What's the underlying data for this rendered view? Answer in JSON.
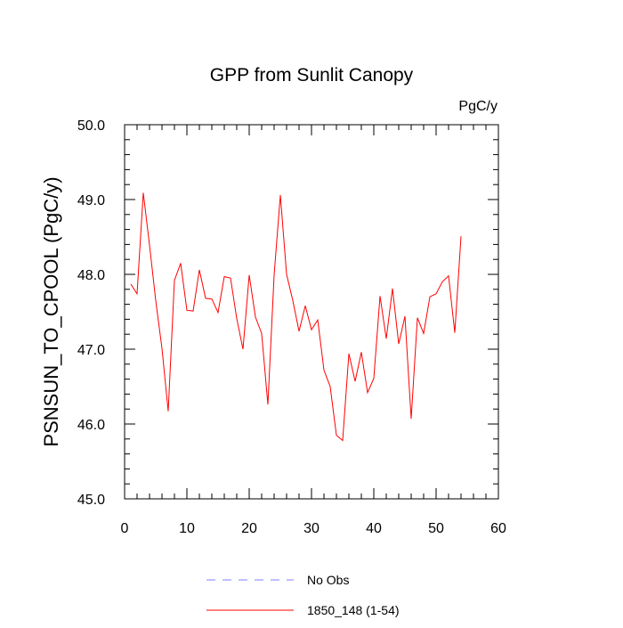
{
  "chart_data": {
    "type": "line",
    "title": "GPP from Sunlit Canopy",
    "units": "PgC/y",
    "ylabel": "PSNSUN_TO_CPOOL  (PgC/y)",
    "xlabel": "",
    "xlim": [
      0,
      60
    ],
    "ylim": [
      45.0,
      50.0
    ],
    "x_ticks": [
      0,
      10,
      20,
      30,
      40,
      50,
      60
    ],
    "y_ticks": [
      45.0,
      46.0,
      47.0,
      48.0,
      49.0,
      50.0
    ],
    "x_tick_labels": [
      "0",
      "10",
      "20",
      "30",
      "40",
      "50",
      "60"
    ],
    "y_tick_labels": [
      "45.0",
      "46.0",
      "47.0",
      "48.0",
      "49.0",
      "50.0"
    ],
    "grid": false,
    "legend_position": "bottom",
    "legend": [
      {
        "label": "No Obs",
        "color": "#8080ff",
        "style": "dashed"
      },
      {
        "label": "1850_148 (1-54)",
        "color": "#ff0000",
        "style": "solid"
      }
    ],
    "series": [
      {
        "name": "1850_148 (1-54)",
        "color": "#ff0000",
        "x": [
          1,
          2,
          3,
          4,
          5,
          6,
          7,
          8,
          9,
          10,
          11,
          12,
          13,
          14,
          15,
          16,
          17,
          18,
          19,
          20,
          21,
          22,
          23,
          24,
          25,
          26,
          27,
          28,
          29,
          30,
          31,
          32,
          33,
          34,
          35,
          36,
          37,
          38,
          39,
          40,
          41,
          42,
          43,
          44,
          45,
          46,
          47,
          48,
          49,
          50,
          51,
          52,
          53,
          54
        ],
        "values": [
          47.87,
          47.74,
          49.09,
          48.39,
          47.65,
          47.01,
          46.17,
          47.92,
          48.15,
          47.52,
          47.51,
          48.06,
          47.68,
          47.67,
          47.49,
          47.97,
          47.95,
          47.41,
          47.0,
          47.99,
          47.43,
          47.21,
          46.26,
          47.99,
          49.06,
          48.0,
          47.65,
          47.24,
          47.58,
          47.26,
          47.39,
          46.72,
          46.5,
          45.85,
          45.78,
          46.94,
          46.57,
          46.96,
          46.42,
          46.61,
          47.71,
          47.14,
          47.81,
          47.07,
          47.44,
          46.07,
          47.42,
          47.21,
          47.7,
          47.74,
          47.9,
          47.98,
          47.22,
          48.51
        ]
      }
    ]
  }
}
